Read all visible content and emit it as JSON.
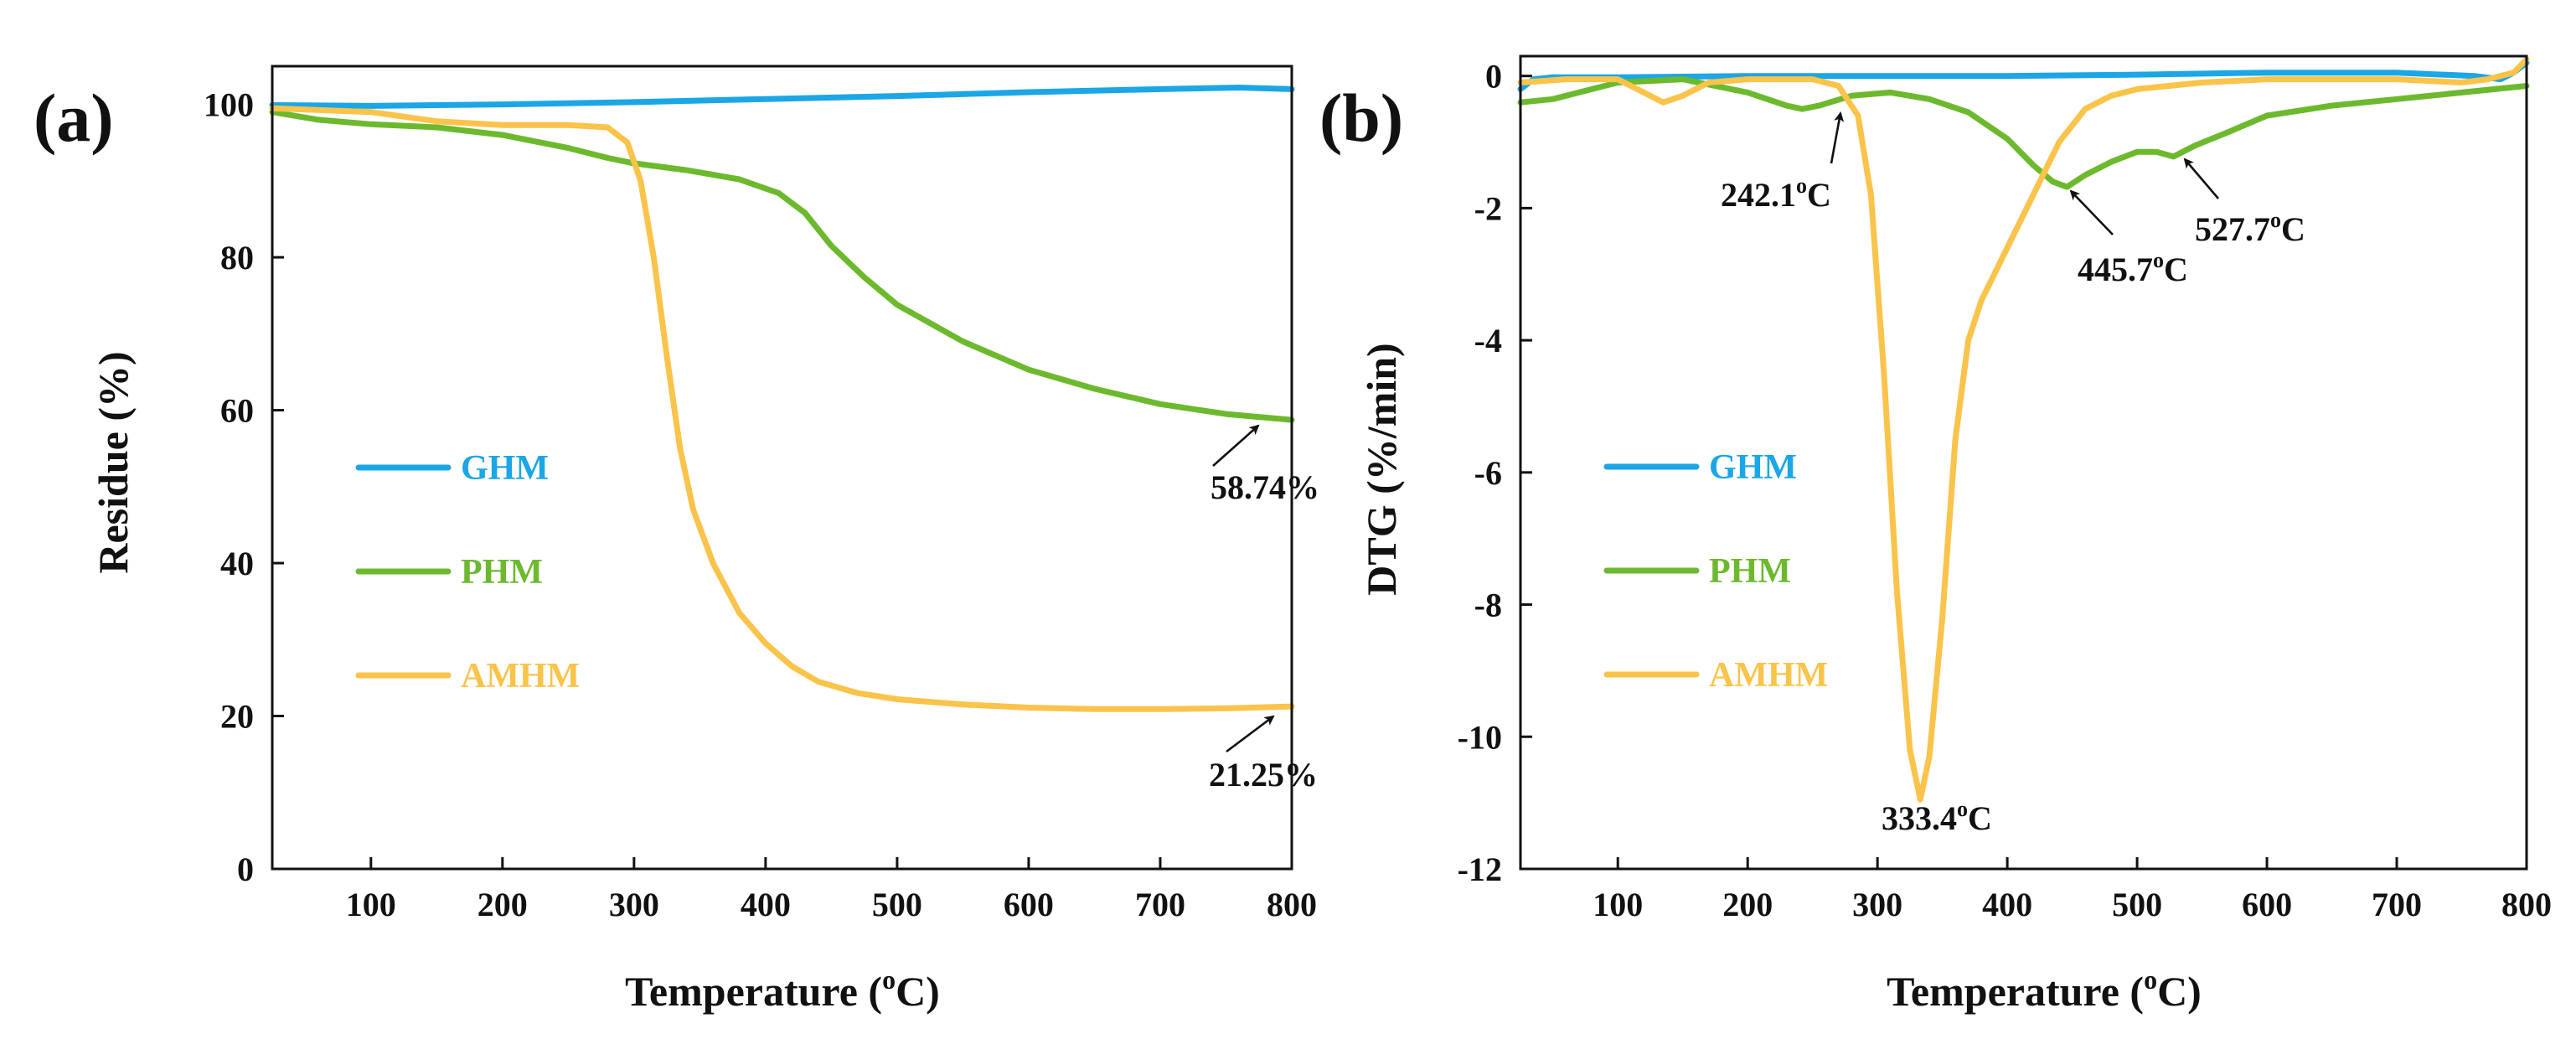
{
  "chart_data": [
    {
      "panel": "(a)",
      "type": "line",
      "xlabel": "Temperature (°C)",
      "xlabel_parts": {
        "prefix": "Temperature (",
        "sup": "o",
        "suffix": "C)"
      },
      "ylabel": "Residue (%)",
      "xlim": [
        25,
        800
      ],
      "ylim": [
        0,
        105
      ],
      "xticks": [
        "100",
        "200",
        "300",
        "400",
        "500",
        "600",
        "700",
        "800"
      ],
      "yticks": [
        "0",
        "20",
        "40",
        "60",
        "80",
        "100"
      ],
      "legend": [
        "GHM",
        "PHM",
        "AMHM"
      ],
      "legend_position": "center-left",
      "series": [
        {
          "name": "GHM",
          "color": "#1ba6e6",
          "x": [
            25,
            100,
            200,
            300,
            400,
            500,
            600,
            700,
            760,
            800
          ],
          "y": [
            99.9,
            99.8,
            100.0,
            100.3,
            100.7,
            101.1,
            101.6,
            102.0,
            102.2,
            102.0
          ]
        },
        {
          "name": "PHM",
          "color": "#6cb92e",
          "x": [
            25,
            60,
            100,
            150,
            200,
            250,
            280,
            300,
            340,
            380,
            410,
            430,
            450,
            475,
            500,
            550,
            600,
            650,
            700,
            750,
            800
          ],
          "y": [
            99.0,
            98.0,
            97.4,
            97.0,
            96.0,
            94.3,
            93.0,
            92.3,
            91.4,
            90.2,
            88.4,
            85.8,
            81.5,
            77.4,
            73.8,
            69.0,
            65.3,
            62.8,
            60.8,
            59.5,
            58.74
          ]
        },
        {
          "name": "AMHM",
          "color": "#fac34a",
          "x": [
            25,
            100,
            150,
            200,
            250,
            280,
            295,
            305,
            315,
            325,
            335,
            345,
            360,
            380,
            400,
            420,
            440,
            470,
            500,
            550,
            600,
            650,
            700,
            750,
            800
          ],
          "y": [
            99.5,
            99.0,
            97.8,
            97.3,
            97.3,
            97.0,
            95.0,
            90.0,
            80.0,
            67.0,
            55.0,
            47.0,
            40.0,
            33.5,
            29.5,
            26.5,
            24.5,
            23.0,
            22.2,
            21.5,
            21.1,
            20.9,
            20.9,
            21.0,
            21.25
          ]
        }
      ],
      "annotations": [
        {
          "text": "58.74%",
          "x": 790,
          "y": 58.74
        },
        {
          "text": "21.25%",
          "x": 790,
          "y": 21.25
        }
      ]
    },
    {
      "panel": "(b)",
      "type": "line",
      "xlabel": "Temperature (°C)",
      "xlabel_parts": {
        "prefix": "Temperature (",
        "sup": "o",
        "suffix": "C)"
      },
      "ylabel": "DTG (%/min)",
      "xlim": [
        25,
        800
      ],
      "ylim": [
        -12,
        0.3
      ],
      "xticks": [
        "100",
        "200",
        "300",
        "400",
        "500",
        "600",
        "700",
        "800"
      ],
      "yticks": [
        "0",
        "-2",
        "-4",
        "-6",
        "-8",
        "-10",
        "-12"
      ],
      "legend": [
        "GHM",
        "PHM",
        "AMHM"
      ],
      "legend_position": "center-left",
      "series": [
        {
          "name": "GHM",
          "color": "#1ba6e6",
          "x": [
            25,
            35,
            50,
            100,
            200,
            300,
            400,
            500,
            600,
            700,
            760,
            780,
            790,
            800
          ],
          "y": [
            -0.2,
            -0.05,
            -0.02,
            -0.02,
            0.0,
            0.0,
            0.0,
            0.02,
            0.05,
            0.05,
            0.0,
            -0.05,
            0.05,
            0.2
          ]
        },
        {
          "name": "PHM",
          "color": "#6cb92e",
          "x": [
            25,
            50,
            80,
            100,
            150,
            200,
            230,
            242,
            255,
            280,
            310,
            340,
            370,
            400,
            420,
            435,
            446,
            460,
            480,
            500,
            515,
            528,
            545,
            570,
            600,
            650,
            700,
            750,
            800
          ],
          "y": [
            -0.4,
            -0.35,
            -0.2,
            -0.1,
            -0.05,
            -0.25,
            -0.45,
            -0.5,
            -0.45,
            -0.3,
            -0.25,
            -0.35,
            -0.55,
            -0.95,
            -1.35,
            -1.6,
            -1.68,
            -1.5,
            -1.3,
            -1.15,
            -1.15,
            -1.22,
            -1.05,
            -0.85,
            -0.6,
            -0.45,
            -0.35,
            -0.25,
            -0.15
          ]
        },
        {
          "name": "AMHM",
          "color": "#fac34a",
          "x": [
            25,
            60,
            100,
            120,
            135,
            150,
            170,
            200,
            250,
            270,
            285,
            295,
            305,
            315,
            325,
            333,
            340,
            350,
            360,
            370,
            380,
            400,
            420,
            440,
            460,
            480,
            500,
            550,
            600,
            650,
            700,
            750,
            770,
            790,
            800
          ],
          "y": [
            -0.1,
            -0.05,
            -0.05,
            -0.25,
            -0.4,
            -0.3,
            -0.1,
            -0.05,
            -0.05,
            -0.15,
            -0.6,
            -1.8,
            -4.5,
            -7.8,
            -10.2,
            -10.95,
            -10.3,
            -8.2,
            -5.5,
            -4.0,
            -3.4,
            -2.6,
            -1.8,
            -1.0,
            -0.5,
            -0.3,
            -0.2,
            -0.1,
            -0.05,
            -0.05,
            -0.05,
            -0.1,
            -0.05,
            0.05,
            0.25
          ]
        }
      ],
      "annotations": [
        {
          "text": "242.1°C",
          "x": 242.1,
          "y": -0.5,
          "parts": {
            "value": "242.1",
            "sup": "o",
            "unit": "C"
          }
        },
        {
          "text": "333.4°C",
          "x": 333.4,
          "y": -10.95,
          "parts": {
            "value": "333.4",
            "sup": "o",
            "unit": "C"
          }
        },
        {
          "text": "445.7°C",
          "x": 445.7,
          "y": -1.68,
          "parts": {
            "value": "445.7",
            "sup": "o",
            "unit": "C"
          }
        },
        {
          "text": "527.7°C",
          "x": 527.7,
          "y": -1.22,
          "parts": {
            "value": "527.7",
            "sup": "o",
            "unit": "C"
          }
        }
      ]
    }
  ]
}
